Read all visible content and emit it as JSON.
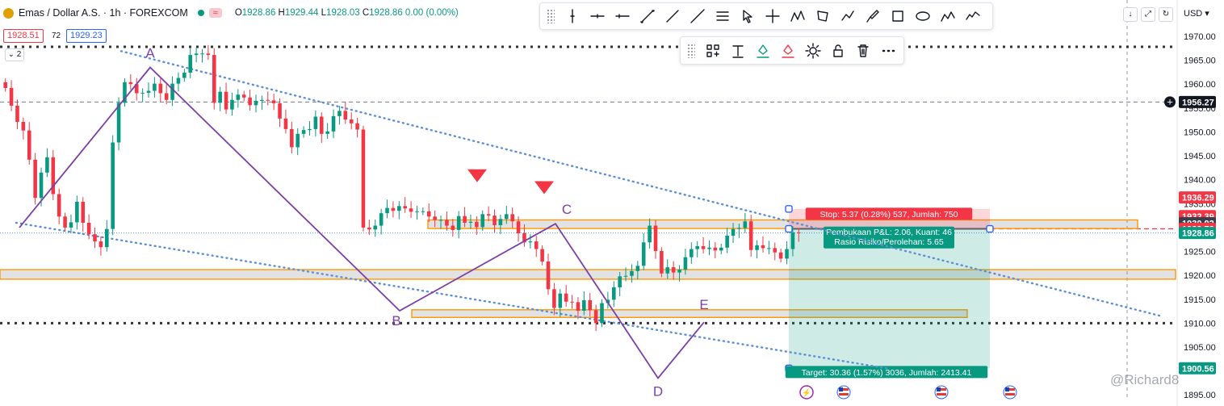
{
  "legend": {
    "symbol": "Emas / Dollar A.S. · 1h · FOREXCOM",
    "o_label": "O",
    "o": "1928.86",
    "h_label": "H",
    "h": "1929.44",
    "l_label": "L",
    "l": "1928.03",
    "c_label": "C",
    "c": "1928.86",
    "change": "0.00 (0.00%)",
    "bid": "1928.51",
    "spread": "72",
    "ask": "1929.23",
    "collapse": "2"
  },
  "axis": {
    "currency": "USD",
    "ticks": [
      "1970.00",
      "1965.00",
      "1960.00",
      "1955.00",
      "1950.00",
      "1945.00",
      "1940.00",
      "1935.00",
      "1930.00",
      "1925.00",
      "1920.00",
      "1915.00",
      "1910.00",
      "1905.00",
      "1900.00",
      "1895.00"
    ]
  },
  "colors": {
    "up": "#089981",
    "down": "#f23645",
    "pattern": "#7b3fa6",
    "trendline": "#5b8fd6",
    "zone": "#ff9800",
    "risk": "#f23645",
    "reward": "#089981"
  },
  "chart_data": {
    "type": "candlestick",
    "instrument": "Emas / Dollar A.S.",
    "timeframe": "1h",
    "exchange": "FOREXCOM",
    "ylim": [
      1895,
      1971
    ],
    "price_labels": [
      {
        "value": 1956.27,
        "text": "1956.27",
        "style": "crosshair"
      },
      {
        "value": 1936.29,
        "text": "1936.29",
        "style": "risk"
      },
      {
        "value": 1932.39,
        "text": "1932.39",
        "style": "risk"
      },
      {
        "value": 1930.92,
        "text": "1930.92",
        "style": "neutral"
      },
      {
        "value": 1929.73,
        "text": "1929.73",
        "style": "risk"
      },
      {
        "value": 1928.86,
        "text": "1928.86",
        "style": "reward"
      },
      {
        "value": 1900.56,
        "text": "1900.56",
        "style": "reward"
      }
    ],
    "horizontal_lines": [
      {
        "value": 1967.8,
        "style": "dotted-bold"
      },
      {
        "value": 1956.27,
        "style": "dashed"
      },
      {
        "value": 1910.0,
        "style": "dotted-bold"
      },
      {
        "value": 1929.73,
        "style": "red-dashed"
      },
      {
        "value": 1928.86,
        "style": "blue-dotted"
      }
    ],
    "zones": [
      {
        "from": 1929.8,
        "to": 1931.6,
        "start_bar": 0.53
      },
      {
        "from": 1919.2,
        "to": 1921.2,
        "start_bar": 0.0
      },
      {
        "from": 1911.2,
        "to": 1912.8,
        "start_bar": 0.51
      }
    ],
    "pattern": {
      "name": "ABCDE",
      "points": [
        {
          "label": "",
          "bar": 0.024,
          "price": 1930.0
        },
        {
          "label": "A",
          "bar": 0.186,
          "price": 1963.5
        },
        {
          "label": "B",
          "bar": 0.495,
          "price": 1912.6
        },
        {
          "label": "C",
          "bar": 0.688,
          "price": 1930.8
        },
        {
          "label": "D",
          "bar": 0.815,
          "price": 1898.5
        },
        {
          "label": "E",
          "bar": 0.872,
          "price": 1910.2
        }
      ]
    },
    "markers": [
      {
        "type": "arrow-down",
        "bar": 0.591,
        "price": 1940.5
      },
      {
        "type": "arrow-down",
        "bar": 0.674,
        "price": 1938.0
      }
    ],
    "position": {
      "type": "long",
      "entry": 1929.73,
      "stop": 1932.39,
      "stop_top": 1933.9,
      "target": 1900.56,
      "stop_label": "Stop: 5.37 (0.28%) 537, Jumlah: 750",
      "pnl_label": "Pembukaan P&L: 2.06, Kuant: 46",
      "ratio_label": "Rasio Risiko/Perolehan: 5.65",
      "target_label": "Target: 30.36 (1.57%) 3036, Jumlah: 2413.41"
    },
    "candles_close": [
      1959.2,
      1955.5,
      1952.1,
      1950.3,
      1944.2,
      1936.2,
      1941.5,
      1944.7,
      1937.0,
      1932.3,
      1930.0,
      1931.1,
      1935.4,
      1931.0,
      1928.6,
      1927.1,
      1925.9,
      1929.7,
      1947.8,
      1956.1,
      1960.4,
      1960.0,
      1958.1,
      1958.2,
      1958.6,
      1960.1,
      1958.1,
      1956.7,
      1960.1,
      1961.3,
      1962.4,
      1966.1,
      1966.4,
      1966.4,
      1966.1,
      1956.1,
      1958.4,
      1954.7,
      1956.7,
      1957.8,
      1957.2,
      1955.6,
      1956.5,
      1956.7,
      1956.6,
      1956.0,
      1952.8,
      1950.6,
      1946.8,
      1949.6,
      1950.4,
      1950.6,
      1953.2,
      1949.6,
      1950.1,
      1953.3,
      1954.4,
      1952.6,
      1951.8,
      1950.5,
      1930.0,
      1929.6,
      1930.4,
      1933.0,
      1934.1,
      1933.5,
      1934.5,
      1934.0,
      1933.3,
      1933.4,
      1933.4,
      1932.3,
      1931.6,
      1931.6,
      1930.4,
      1929.5,
      1932.4,
      1931.0,
      1931.2,
      1930.1,
      1932.8,
      1932.5,
      1930.5,
      1931.8,
      1932.8,
      1931.3,
      1928.8,
      1926.9,
      1927.1,
      1925.5,
      1922.9,
      1917.1,
      1913.2,
      1916.2,
      1914.5,
      1914.4,
      1912.6,
      1914.8,
      1912.7,
      1910.0,
      1914.2,
      1914.9,
      1917.5,
      1919.8,
      1919.9,
      1920.9,
      1922.0,
      1926.9,
      1930.4,
      1925.1,
      1920.4,
      1921.7,
      1920.6,
      1921.2,
      1923.8,
      1925.5,
      1926.1,
      1925.5,
      1925.8,
      1925.2,
      1925.8,
      1928.3,
      1929.7,
      1929.9,
      1931.3,
      1925.3,
      1926.3,
      1925.7,
      1925.7,
      1924.8,
      1923.5,
      1925.5,
      1929.0,
      1928.9
    ]
  },
  "labels": {
    "A": "A",
    "B": "B",
    "C": "C",
    "D": "D",
    "E": "E"
  },
  "watermark": "@Richard8",
  "toolbar_main": [
    "vertical-line-icon",
    "horizontal-ray-icon",
    "horizontal-line-icon",
    "trend-line-icon",
    "ray-icon",
    "extended-line-icon",
    "parallel-channel-icon",
    "cursor-icon",
    "cross-icon",
    "pattern-icon",
    "polygon-icon",
    "path-icon",
    "brush-icon",
    "rectangle-icon",
    "ellipse-icon",
    "abcd-pattern-icon",
    "elliott-wave-icon"
  ],
  "toolbar_sub": [
    "template-icon",
    "text-icon",
    "fill-color-icon",
    "line-color-icon",
    "settings-icon",
    "lock-icon",
    "delete-icon",
    "more-icon"
  ]
}
